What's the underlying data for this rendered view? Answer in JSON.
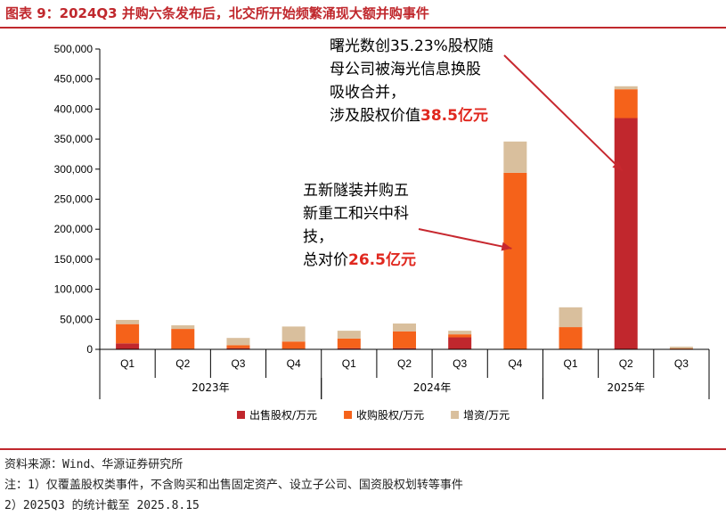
{
  "title": "图表 9：2024Q3 并购六条发布后，北交所开始频繁涌现大额并购事件",
  "notes": {
    "source": "资料来源：Wind、华源证券研究所",
    "note1": "注：1）仅覆盖股权类事件，不含购买和出售固定资产、设立子公司、国资股权划转等事件",
    "note2": "2）2025Q3 的统计截至 2025.8.15"
  },
  "colors": {
    "sell": "#c1272d",
    "buy": "#f5621a",
    "capital": "#d9bf9d",
    "accent": "#c0282d",
    "arrow": "#c7282f"
  },
  "chart_data": {
    "type": "bar",
    "stacked": true,
    "categories": [
      "Q1",
      "Q2",
      "Q3",
      "Q4",
      "Q1",
      "Q2",
      "Q3",
      "Q4",
      "Q1",
      "Q2",
      "Q3"
    ],
    "year_groups": [
      {
        "label": "2023年",
        "span": 4
      },
      {
        "label": "2024年",
        "span": 4
      },
      {
        "label": "2025年",
        "span": 3
      }
    ],
    "series": [
      {
        "name": "出售股权/万元",
        "color": "#c1272d",
        "values": [
          10000,
          1000,
          2000,
          1000,
          2000,
          2000,
          20000,
          0,
          1000,
          385000,
          0
        ]
      },
      {
        "name": "收购股权/万元",
        "color": "#f5621a",
        "values": [
          32000,
          33000,
          5000,
          12000,
          16000,
          28000,
          5000,
          294000,
          36000,
          48000,
          1500
        ]
      },
      {
        "name": "增资/万元",
        "color": "#d9bf9d",
        "values": [
          7000,
          6000,
          12000,
          25000,
          13000,
          13000,
          6000,
          52000,
          33000,
          5000,
          3000
        ]
      }
    ],
    "ylim": [
      0,
      500000
    ],
    "yticks": [
      "0",
      "50,000",
      "100,000",
      "150,000",
      "200,000",
      "250,000",
      "300,000",
      "350,000",
      "400,000",
      "450,000",
      "500,000"
    ],
    "grid": false,
    "legend_position": "bottom",
    "annotations": [
      {
        "lines": [
          "曙光数创35.23%股权随",
          "母公司被海光信息换股",
          "吸收合并，"
        ],
        "last_prefix": "涉及股权价值",
        "last_emphasis": "38.5亿元",
        "target_index": 9
      },
      {
        "lines": [
          "五新隧装并购五",
          "新重工和兴中科",
          "技，"
        ],
        "last_prefix": "总对价",
        "last_emphasis": "26.5亿元",
        "target_index": 7
      }
    ]
  }
}
